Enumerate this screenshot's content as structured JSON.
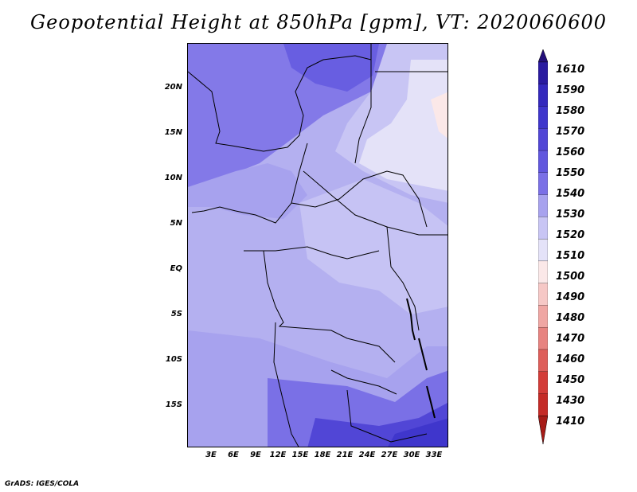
{
  "title": "Geopotential Height at 850hPa [gpm], VT: 2020060600",
  "credit": "GrADS: IGES/COLA",
  "map": {
    "lat_labels": [
      "20N",
      "15N",
      "10N",
      "5N",
      "EQ",
      "5S",
      "10S",
      "15S"
    ],
    "lon_labels": [
      "3E",
      "6E",
      "9E",
      "12E",
      "15E",
      "18E",
      "21E",
      "24E",
      "27E",
      "30E",
      "33E"
    ]
  },
  "colorbar": {
    "levels": [
      "1610",
      "1590",
      "1580",
      "1570",
      "1560",
      "1550",
      "1540",
      "1530",
      "1520",
      "1510",
      "1500",
      "1490",
      "1480",
      "1470",
      "1460",
      "1450",
      "1430",
      "1410"
    ],
    "colors": [
      "#24107a",
      "#2a1ba0",
      "#3429bd",
      "#3f36cc",
      "#5146d6",
      "#6157de",
      "#7a70e6",
      "#a7a2ee",
      "#c8c5f4",
      "#e4e2f8",
      "#fbe8e8",
      "#f6c8c6",
      "#efa6a3",
      "#e78380",
      "#de5e5a",
      "#d33c38",
      "#c42b27",
      "#a61b17"
    ]
  }
}
